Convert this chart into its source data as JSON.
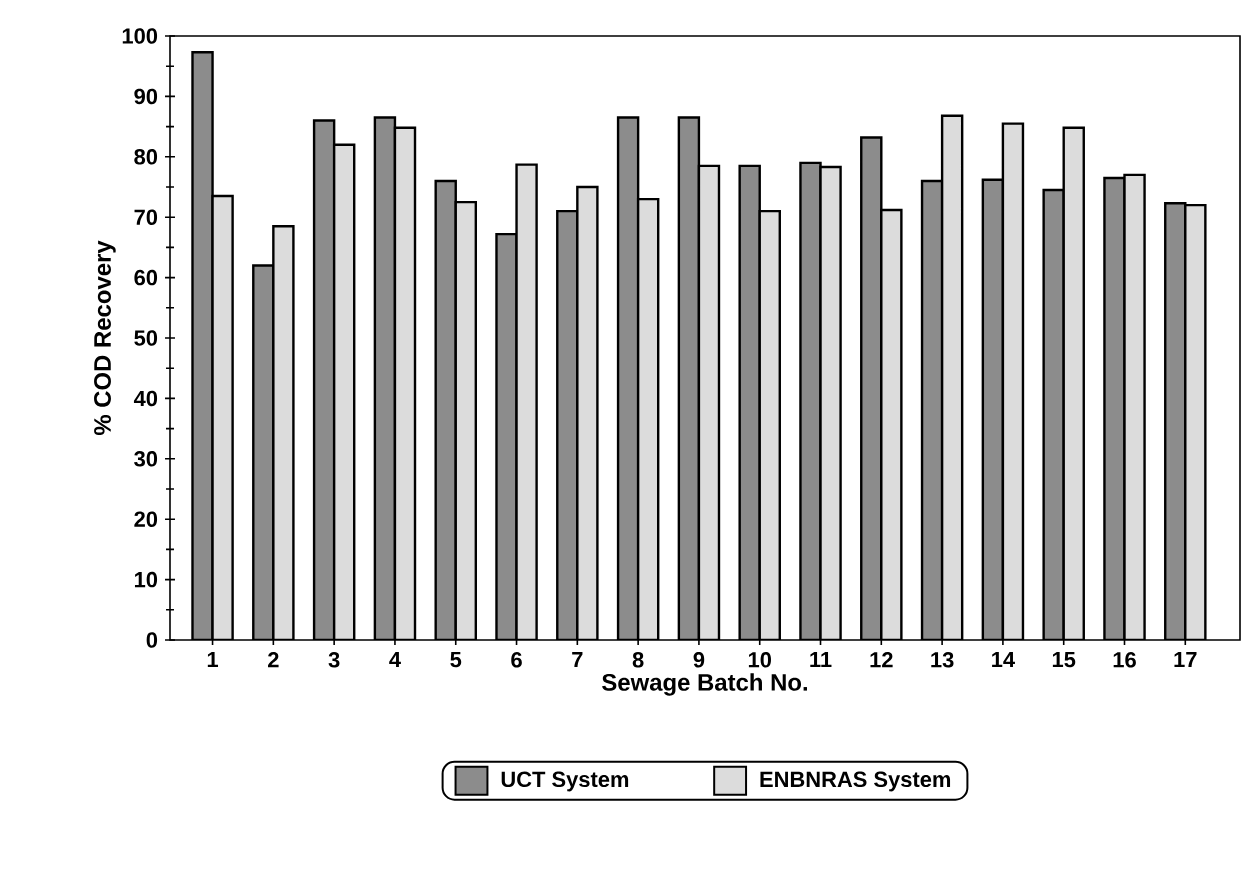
{
  "chart_data": {
    "type": "bar",
    "xlabel": "Sewage Batch No.",
    "ylabel": "% COD Recovery",
    "categories": [
      "1",
      "2",
      "3",
      "4",
      "5",
      "6",
      "7",
      "8",
      "9",
      "10",
      "11",
      "12",
      "13",
      "14",
      "15",
      "16",
      "17"
    ],
    "series": [
      {
        "name": "UCT System",
        "color": "#8c8c8c",
        "values": [
          97.3,
          62,
          86,
          86.5,
          76,
          67.2,
          71,
          86.5,
          86.5,
          78.5,
          79,
          83.2,
          76,
          76.2,
          74.5,
          76.5,
          72.3
        ]
      },
      {
        "name": "ENBNRAS System",
        "color": "#dcdcdc",
        "values": [
          73.5,
          68.5,
          82,
          84.8,
          72.5,
          78.7,
          75,
          73,
          78.5,
          71,
          78.3,
          71.2,
          86.8,
          85.5,
          84.8,
          77,
          72
        ]
      }
    ],
    "ylim": [
      0,
      100
    ],
    "yticks": [
      0,
      10,
      20,
      30,
      40,
      50,
      60,
      70,
      80,
      90,
      100
    ],
    "grid": false,
    "legend": "bottom"
  }
}
